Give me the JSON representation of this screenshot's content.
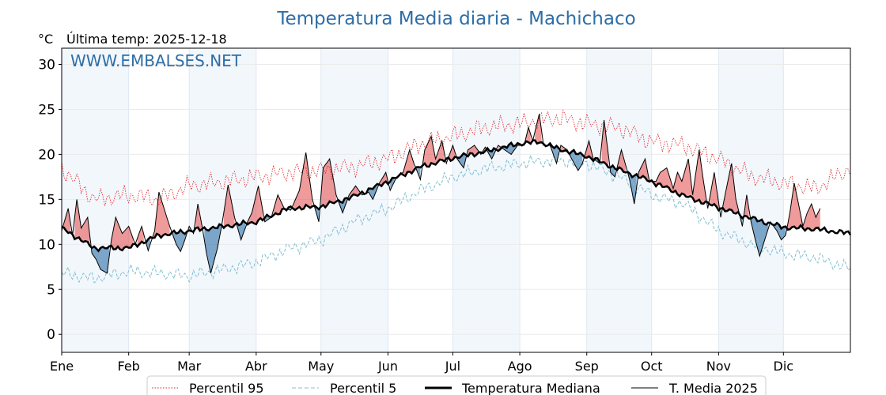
{
  "chart_data": {
    "type": "line",
    "title": "Temperatura Media diaria - Machichaco",
    "unit_label": "°C",
    "last_reading": "Última temp: 2025-12-18",
    "watermark": "WWW.EMBALSES.NET",
    "months": [
      "Ene",
      "Feb",
      "Mar",
      "Abr",
      "May",
      "Jun",
      "Jul",
      "Ago",
      "Sep",
      "Oct",
      "Nov",
      "Dic"
    ],
    "yticks": [
      0,
      5,
      10,
      15,
      20,
      25,
      30
    ],
    "ylim": [
      -2,
      31.8
    ],
    "xlim_day": [
      0,
      365
    ],
    "grid": true,
    "legend_position": "bottom",
    "colors": {
      "p95": "#e31a1c",
      "p5": "#7fbfd3",
      "median": "#000000",
      "current": "#000000",
      "above": "#e34848",
      "below": "#2b6ea6",
      "shade": "#f2f7fc",
      "title": "#2e6ea6"
    },
    "series": [
      {
        "name": "Percentil 95",
        "style": "dotted"
      },
      {
        "name": "Percentil 5",
        "style": "dashed"
      },
      {
        "name": "Temperatura Mediana",
        "style": "thick"
      },
      {
        "name": "T. Media 2025",
        "style": "thin"
      }
    ],
    "median_knots": [
      [
        0,
        11.8
      ],
      [
        15,
        9.6
      ],
      [
        31,
        9.6
      ],
      [
        45,
        11.0
      ],
      [
        59,
        11.5
      ],
      [
        75,
        12.0
      ],
      [
        90,
        12.5
      ],
      [
        105,
        14.0
      ],
      [
        120,
        14.2
      ],
      [
        135,
        15.3
      ],
      [
        151,
        17.0
      ],
      [
        166,
        18.6
      ],
      [
        181,
        19.6
      ],
      [
        196,
        20.3
      ],
      [
        212,
        21.2
      ],
      [
        221,
        21.4
      ],
      [
        230,
        20.6
      ],
      [
        243,
        19.8
      ],
      [
        258,
        18.3
      ],
      [
        273,
        17.0
      ],
      [
        288,
        15.4
      ],
      [
        304,
        14.1
      ],
      [
        319,
        12.9
      ],
      [
        334,
        11.9
      ],
      [
        349,
        11.7
      ],
      [
        365,
        11.2
      ]
    ],
    "p95_knots": [
      [
        0,
        18.5
      ],
      [
        15,
        15.0
      ],
      [
        31,
        15.5
      ],
      [
        45,
        15.0
      ],
      [
        59,
        16.5
      ],
      [
        75,
        17.0
      ],
      [
        90,
        17.5
      ],
      [
        105,
        18.0
      ],
      [
        120,
        18.2
      ],
      [
        135,
        18.6
      ],
      [
        151,
        19.5
      ],
      [
        166,
        21.2
      ],
      [
        181,
        22.0
      ],
      [
        196,
        23.0
      ],
      [
        212,
        23.4
      ],
      [
        221,
        23.8
      ],
      [
        230,
        24.0
      ],
      [
        243,
        23.4
      ],
      [
        258,
        23.0
      ],
      [
        273,
        21.4
      ],
      [
        288,
        21.0
      ],
      [
        304,
        19.5
      ],
      [
        319,
        17.6
      ],
      [
        334,
        16.8
      ],
      [
        349,
        16.2
      ],
      [
        365,
        18.5
      ]
    ],
    "p5_knots": [
      [
        0,
        6.8
      ],
      [
        15,
        6.2
      ],
      [
        31,
        7.0
      ],
      [
        45,
        6.8
      ],
      [
        59,
        6.5
      ],
      [
        75,
        7.2
      ],
      [
        90,
        8.0
      ],
      [
        105,
        9.5
      ],
      [
        120,
        10.5
      ],
      [
        135,
        12.5
      ],
      [
        151,
        14.0
      ],
      [
        166,
        16.0
      ],
      [
        181,
        17.5
      ],
      [
        196,
        18.4
      ],
      [
        212,
        19.0
      ],
      [
        221,
        19.2
      ],
      [
        230,
        19.3
      ],
      [
        243,
        19.0
      ],
      [
        258,
        17.5
      ],
      [
        273,
        15.5
      ],
      [
        288,
        14.5
      ],
      [
        304,
        11.5
      ],
      [
        319,
        10.0
      ],
      [
        334,
        9.0
      ],
      [
        349,
        8.5
      ],
      [
        365,
        7.3
      ]
    ],
    "current_knots": [
      [
        0,
        11.5
      ],
      [
        3,
        14.0
      ],
      [
        5,
        11.0
      ],
      [
        7,
        15.0
      ],
      [
        9,
        11.8
      ],
      [
        12,
        13.0
      ],
      [
        14,
        9.0
      ],
      [
        16,
        8.3
      ],
      [
        18,
        7.2
      ],
      [
        21,
        6.8
      ],
      [
        23,
        10.5
      ],
      [
        25,
        13.0
      ],
      [
        28,
        11.2
      ],
      [
        31,
        12.0
      ],
      [
        34,
        10.0
      ],
      [
        37,
        12.0
      ],
      [
        40,
        9.3
      ],
      [
        43,
        11.5
      ],
      [
        45,
        15.8
      ],
      [
        48,
        13.5
      ],
      [
        50,
        12.0
      ],
      [
        53,
        10.0
      ],
      [
        55,
        9.2
      ],
      [
        57,
        10.5
      ],
      [
        59,
        12.0
      ],
      [
        61,
        11.2
      ],
      [
        63,
        14.5
      ],
      [
        65,
        12.0
      ],
      [
        67,
        9.0
      ],
      [
        69,
        6.8
      ],
      [
        72,
        9.5
      ],
      [
        74,
        12.0
      ],
      [
        77,
        16.6
      ],
      [
        80,
        13.0
      ],
      [
        83,
        10.5
      ],
      [
        86,
        12.5
      ],
      [
        88,
        13.5
      ],
      [
        91,
        16.5
      ],
      [
        94,
        12.5
      ],
      [
        97,
        13.0
      ],
      [
        100,
        15.5
      ],
      [
        103,
        14.0
      ],
      [
        106,
        13.8
      ],
      [
        110,
        16.0
      ],
      [
        113,
        20.2
      ],
      [
        116,
        15.0
      ],
      [
        119,
        12.5
      ],
      [
        121,
        18.5
      ],
      [
        124,
        19.5
      ],
      [
        127,
        15.5
      ],
      [
        130,
        13.5
      ],
      [
        133,
        15.5
      ],
      [
        136,
        16.5
      ],
      [
        139,
        15.5
      ],
      [
        142,
        15.8
      ],
      [
        144,
        15.0
      ],
      [
        147,
        16.8
      ],
      [
        150,
        18.0
      ],
      [
        152,
        16.0
      ],
      [
        155,
        17.5
      ],
      [
        158,
        18.0
      ],
      [
        161,
        20.5
      ],
      [
        163,
        19.0
      ],
      [
        166,
        17.2
      ],
      [
        168,
        20.5
      ],
      [
        171,
        22.0
      ],
      [
        173,
        19.5
      ],
      [
        176,
        21.5
      ],
      [
        178,
        19.0
      ],
      [
        181,
        21.0
      ],
      [
        183,
        19.5
      ],
      [
        186,
        18.5
      ],
      [
        188,
        20.5
      ],
      [
        191,
        21.0
      ],
      [
        194,
        20.0
      ],
      [
        196,
        20.8
      ],
      [
        199,
        19.5
      ],
      [
        202,
        21.0
      ],
      [
        205,
        20.5
      ],
      [
        208,
        20.0
      ],
      [
        211,
        21.0
      ],
      [
        214,
        21.0
      ],
      [
        216,
        23.0
      ],
      [
        218,
        21.5
      ],
      [
        221,
        24.5
      ],
      [
        223,
        21.0
      ],
      [
        226,
        21.0
      ],
      [
        229,
        19.0
      ],
      [
        231,
        21.0
      ],
      [
        234,
        20.5
      ],
      [
        236,
        19.5
      ],
      [
        239,
        18.2
      ],
      [
        241,
        19.0
      ],
      [
        244,
        21.5
      ],
      [
        246,
        19.5
      ],
      [
        249,
        19.0
      ],
      [
        251,
        23.8
      ],
      [
        254,
        18.0
      ],
      [
        256,
        17.5
      ],
      [
        259,
        20.5
      ],
      [
        261,
        18.8
      ],
      [
        263,
        17.0
      ],
      [
        265,
        14.5
      ],
      [
        267,
        18.0
      ],
      [
        270,
        19.5
      ],
      [
        272,
        17.0
      ],
      [
        275,
        17.0
      ],
      [
        277,
        18.0
      ],
      [
        280,
        18.5
      ],
      [
        283,
        16.2
      ],
      [
        285,
        18.0
      ],
      [
        287,
        17.0
      ],
      [
        290,
        19.5
      ],
      [
        292,
        15.5
      ],
      [
        295,
        20.5
      ],
      [
        297,
        17.0
      ],
      [
        299,
        14.0
      ],
      [
        302,
        18.0
      ],
      [
        305,
        13.0
      ],
      [
        307,
        15.5
      ],
      [
        310,
        19.0
      ],
      [
        312,
        15.0
      ],
      [
        315,
        12.0
      ],
      [
        317,
        15.5
      ],
      [
        319,
        12.5
      ],
      [
        321,
        10.5
      ],
      [
        323,
        8.7
      ],
      [
        326,
        11.0
      ],
      [
        328,
        12.5
      ],
      [
        331,
        11.5
      ],
      [
        333,
        10.5
      ],
      [
        335,
        11.0
      ],
      [
        337,
        13.5
      ],
      [
        339,
        16.8
      ],
      [
        341,
        14.5
      ],
      [
        343,
        12.0
      ],
      [
        345,
        13.5
      ],
      [
        347,
        14.5
      ],
      [
        349,
        13.0
      ],
      [
        351,
        14.0
      ]
    ]
  }
}
